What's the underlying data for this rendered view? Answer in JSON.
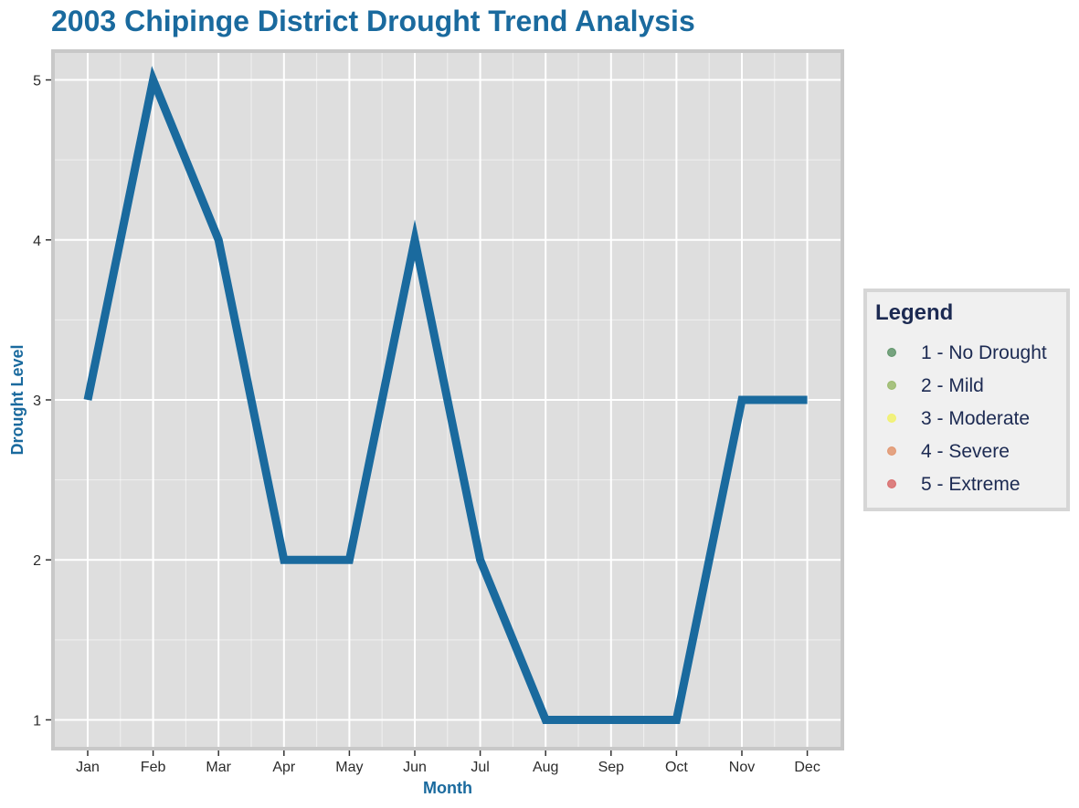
{
  "colors": {
    "title": "#1a6a9e",
    "axis_title": "#1a6a9e",
    "line": "#1a6a9e",
    "panel_bg": "#dedede",
    "panel_border": "#c8c8c8",
    "grid": "#ffffff",
    "legend_bg": "#f0f0f0",
    "legend_border": "#d6d6d6",
    "legend_text": "#1c2a52"
  },
  "chart_data": {
    "type": "line",
    "title": "2003 Chipinge District Drought Trend Analysis",
    "xlabel": "Month",
    "ylabel": "Drought Level",
    "categories": [
      "Jan",
      "Feb",
      "Mar",
      "Apr",
      "May",
      "Jun",
      "Jul",
      "Aug",
      "Sep",
      "Oct",
      "Nov",
      "Dec"
    ],
    "series": [
      {
        "values": [
          3,
          5,
          4,
          2,
          2,
          4,
          2,
          1,
          1,
          1,
          3,
          3
        ]
      }
    ],
    "ylim": [
      0.82,
      5.18
    ],
    "yticks": [
      1,
      2,
      3,
      4,
      5
    ],
    "grid": true,
    "legend": {
      "title": "Legend",
      "placement": "right",
      "items": [
        {
          "label": "1 - No Drought",
          "color": "#4d8a5a"
        },
        {
          "label": "2 - Mild",
          "color": "#8fb35a"
        },
        {
          "label": "3 - Moderate",
          "color": "#f2f25a"
        },
        {
          "label": "4 - Severe",
          "color": "#e08a5e"
        },
        {
          "label": "5 - Extreme",
          "color": "#d65a5a"
        }
      ]
    }
  }
}
